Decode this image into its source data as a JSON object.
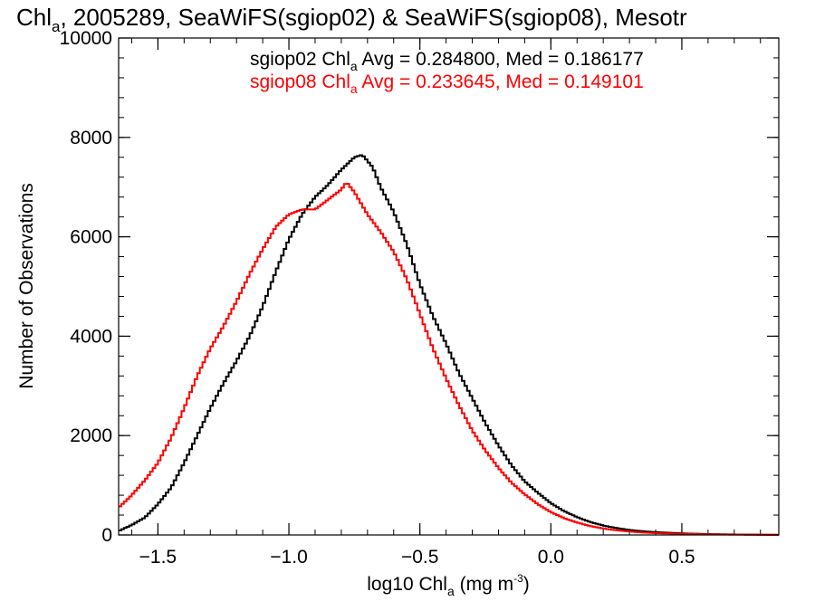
{
  "chart_data": {
    "type": "histogram-line",
    "title": {
      "prefix": "Chl",
      "sub": "a",
      "rest": ", 2005289, SeaWiFS(sgiop02) & SeaWiFS(sgiop08), Mesotr"
    },
    "xlabel": {
      "prefix": "log10 Chl",
      "sub": "a",
      "mid": " (mg m",
      "sup": "-3",
      "suffix": ")"
    },
    "ylabel": "Number of Observations",
    "xlim": [
      -1.65,
      0.87
    ],
    "ylim": [
      0,
      10000
    ],
    "xticks": [
      {
        "value": -1.5,
        "label": "−1.5"
      },
      {
        "value": -1.0,
        "label": "−1.0"
      },
      {
        "value": -0.5,
        "label": "−0.5"
      },
      {
        "value": 0.0,
        "label": "0.0"
      },
      {
        "value": 0.5,
        "label": "0.5"
      }
    ],
    "yticks": [
      {
        "value": 0,
        "label": "0"
      },
      {
        "value": 2000,
        "label": "2000"
      },
      {
        "value": 4000,
        "label": "4000"
      },
      {
        "value": 6000,
        "label": "6000"
      },
      {
        "value": 8000,
        "label": "8000"
      },
      {
        "value": 10000,
        "label": "10000"
      }
    ],
    "x_minor_step": 0.1,
    "y_minor_step": 400,
    "legend_position": "top-right",
    "series": [
      {
        "name": "sgiop02",
        "color": "#000000",
        "legend": {
          "prefix": "sgiop02 Chl",
          "sub": "a",
          "rest": " Avg = 0.284800, Med = 0.186177"
        },
        "points": [
          [
            -1.65,
            80
          ],
          [
            -1.6,
            200
          ],
          [
            -1.55,
            350
          ],
          [
            -1.5,
            620
          ],
          [
            -1.45,
            950
          ],
          [
            -1.4,
            1450
          ],
          [
            -1.35,
            2000
          ],
          [
            -1.3,
            2550
          ],
          [
            -1.25,
            3050
          ],
          [
            -1.2,
            3500
          ],
          [
            -1.15,
            4000
          ],
          [
            -1.1,
            4600
          ],
          [
            -1.05,
            5300
          ],
          [
            -1.0,
            5950
          ],
          [
            -0.95,
            6450
          ],
          [
            -0.9,
            6800
          ],
          [
            -0.85,
            7050
          ],
          [
            -0.8,
            7350
          ],
          [
            -0.75,
            7600
          ],
          [
            -0.72,
            7650
          ],
          [
            -0.68,
            7400
          ],
          [
            -0.65,
            7000
          ],
          [
            -0.6,
            6500
          ],
          [
            -0.55,
            5850
          ],
          [
            -0.5,
            5050
          ],
          [
            -0.45,
            4400
          ],
          [
            -0.4,
            3850
          ],
          [
            -0.35,
            3250
          ],
          [
            -0.3,
            2750
          ],
          [
            -0.25,
            2250
          ],
          [
            -0.2,
            1800
          ],
          [
            -0.15,
            1400
          ],
          [
            -0.1,
            1080
          ],
          [
            -0.05,
            850
          ],
          [
            0.0,
            640
          ],
          [
            0.05,
            480
          ],
          [
            0.1,
            360
          ],
          [
            0.15,
            260
          ],
          [
            0.2,
            190
          ],
          [
            0.25,
            140
          ],
          [
            0.3,
            100
          ],
          [
            0.35,
            75
          ],
          [
            0.4,
            55
          ],
          [
            0.5,
            32
          ],
          [
            0.6,
            18
          ],
          [
            0.7,
            10
          ],
          [
            0.8,
            5
          ],
          [
            0.87,
            3
          ]
        ]
      },
      {
        "name": "sgiop08",
        "color": "#ff0000",
        "legend": {
          "prefix": "sgiop08 Chl",
          "sub": "a",
          "rest": " Avg = 0.233645, Med = 0.149101"
        },
        "points": [
          [
            -1.65,
            550
          ],
          [
            -1.6,
            800
          ],
          [
            -1.55,
            1100
          ],
          [
            -1.5,
            1450
          ],
          [
            -1.45,
            1950
          ],
          [
            -1.4,
            2550
          ],
          [
            -1.35,
            3200
          ],
          [
            -1.3,
            3750
          ],
          [
            -1.25,
            4200
          ],
          [
            -1.2,
            4700
          ],
          [
            -1.15,
            5250
          ],
          [
            -1.1,
            5750
          ],
          [
            -1.05,
            6200
          ],
          [
            -1.0,
            6450
          ],
          [
            -0.95,
            6550
          ],
          [
            -0.9,
            6550
          ],
          [
            -0.85,
            6750
          ],
          [
            -0.8,
            6950
          ],
          [
            -0.78,
            7100
          ],
          [
            -0.75,
            6900
          ],
          [
            -0.7,
            6450
          ],
          [
            -0.65,
            6100
          ],
          [
            -0.6,
            5700
          ],
          [
            -0.55,
            5150
          ],
          [
            -0.5,
            4450
          ],
          [
            -0.45,
            3750
          ],
          [
            -0.4,
            3150
          ],
          [
            -0.35,
            2600
          ],
          [
            -0.3,
            2100
          ],
          [
            -0.25,
            1700
          ],
          [
            -0.2,
            1350
          ],
          [
            -0.15,
            1050
          ],
          [
            -0.1,
            820
          ],
          [
            -0.05,
            620
          ],
          [
            0.0,
            460
          ],
          [
            0.05,
            340
          ],
          [
            0.1,
            250
          ],
          [
            0.15,
            180
          ],
          [
            0.2,
            130
          ],
          [
            0.25,
            95
          ],
          [
            0.3,
            70
          ],
          [
            0.35,
            50
          ],
          [
            0.4,
            38
          ],
          [
            0.5,
            22
          ],
          [
            0.6,
            12
          ],
          [
            0.7,
            7
          ],
          [
            0.8,
            4
          ],
          [
            0.87,
            2
          ]
        ]
      }
    ]
  }
}
